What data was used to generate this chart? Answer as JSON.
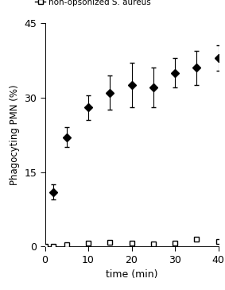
{
  "opsonized_x": [
    2,
    5,
    10,
    15,
    20,
    25,
    30,
    35,
    40
  ],
  "opsonized_y": [
    11,
    22,
    28,
    31,
    32.5,
    32,
    35,
    36,
    38
  ],
  "opsonized_yerr": [
    1.5,
    2.0,
    2.5,
    3.5,
    4.5,
    4.0,
    3.0,
    3.5,
    2.5
  ],
  "non_opsonized_x": [
    0,
    2,
    5,
    10,
    15,
    20,
    25,
    30,
    35,
    40
  ],
  "non_opsonized_y": [
    0,
    0.0,
    0.4,
    0.7,
    0.8,
    0.75,
    0.6,
    0.7,
    1.5,
    1.0
  ],
  "xlabel": "time (min)",
  "ylabel": "Phagocyting PMN (%)",
  "legend_non_opsonized": "non-opsonized S. aureus",
  "ylim": [
    0,
    45
  ],
  "xlim": [
    0,
    40
  ],
  "yticks": [
    0,
    15,
    30,
    45
  ],
  "xticks": [
    0,
    10,
    20,
    30,
    40
  ],
  "background_color": "#ffffff"
}
